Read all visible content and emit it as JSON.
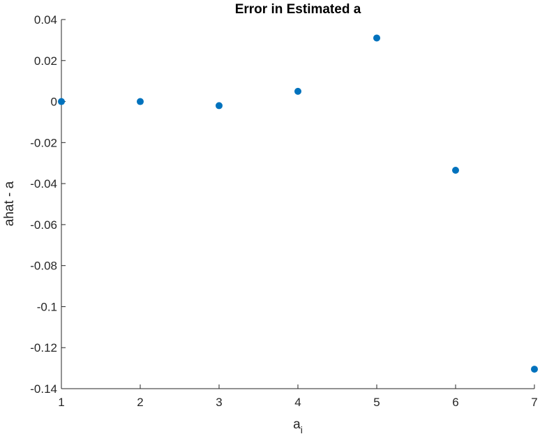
{
  "chart_data": {
    "type": "scatter",
    "title": "Error in Estimated a",
    "xlabel": "a",
    "xlabel_subscript": "i",
    "ylabel": "ahat - a",
    "xlim": [
      1,
      7
    ],
    "ylim": [
      -0.14,
      0.04
    ],
    "xticks": [
      1,
      2,
      3,
      4,
      5,
      6,
      7
    ],
    "xtick_labels": [
      "1",
      "2",
      "3",
      "4",
      "5",
      "6",
      "7"
    ],
    "yticks": [
      0.04,
      0.02,
      0,
      -0.02,
      -0.04,
      -0.06,
      -0.08,
      -0.1,
      -0.12,
      -0.14
    ],
    "ytick_labels": [
      "0.04",
      "0.02",
      "0",
      "-0.02",
      "-0.04",
      "-0.06",
      "-0.08",
      "-0.1",
      "-0.12",
      "-0.14"
    ],
    "grid": false,
    "series": [
      {
        "x": [
          1,
          2,
          3,
          4,
          5,
          6,
          7
        ],
        "y": [
          0.0,
          0.0,
          -0.002,
          0.005,
          0.031,
          -0.0335,
          -0.1305
        ],
        "color": "#0072BD"
      }
    ]
  }
}
